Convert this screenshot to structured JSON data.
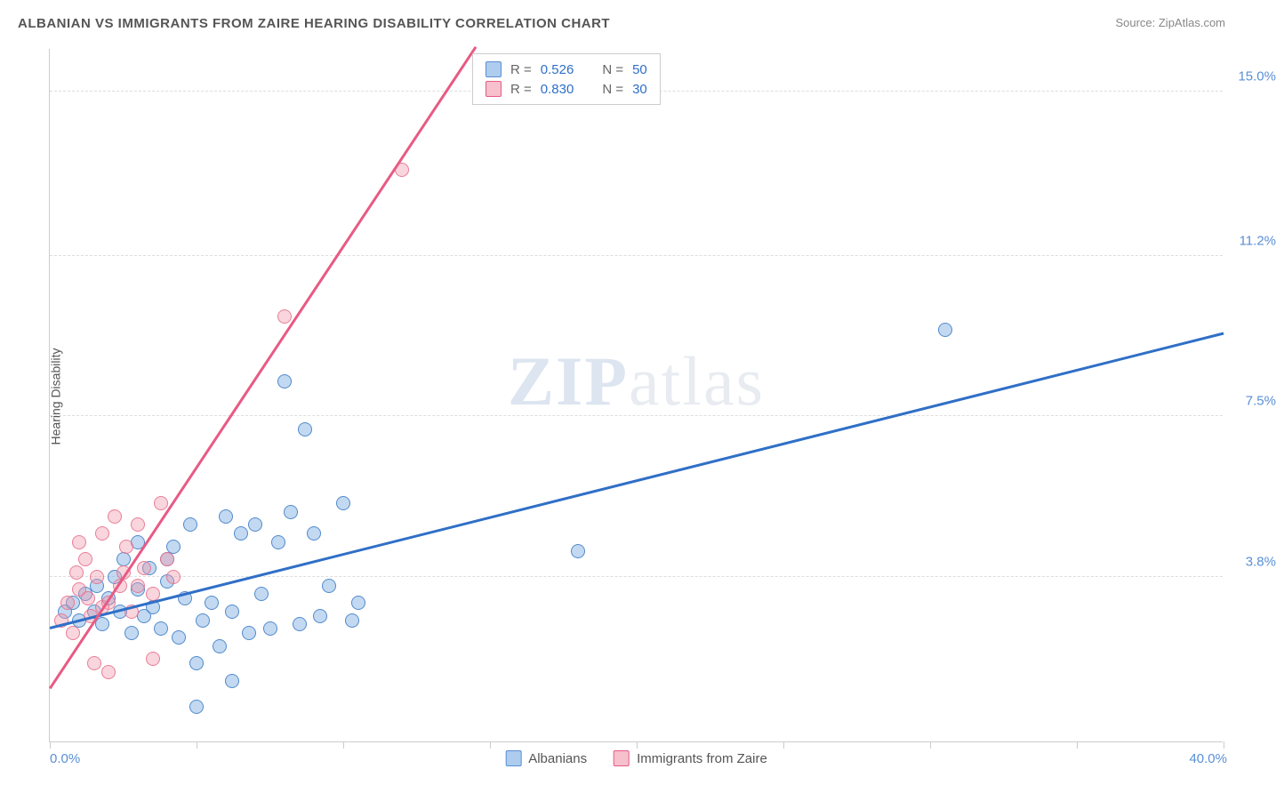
{
  "title": "ALBANIAN VS IMMIGRANTS FROM ZAIRE HEARING DISABILITY CORRELATION CHART",
  "source": "Source: ZipAtlas.com",
  "y_axis_label": "Hearing Disability",
  "watermark_bold": "ZIP",
  "watermark_rest": "atlas",
  "chart": {
    "type": "scatter",
    "xlim": [
      0,
      40
    ],
    "ylim": [
      0,
      16
    ],
    "x_min_label": "0.0%",
    "x_max_label": "40.0%",
    "y_ticks": [
      3.8,
      7.5,
      11.2,
      15.0
    ],
    "y_tick_labels": [
      "3.8%",
      "7.5%",
      "11.2%",
      "15.0%"
    ],
    "x_ticks": [
      0,
      5,
      10,
      15,
      20,
      25,
      30,
      35,
      40
    ],
    "background_color": "#ffffff",
    "grid_color": "#dddddd",
    "axis_color": "#cccccc",
    "label_color": "#5a8fd6",
    "point_radius": 8,
    "series": [
      {
        "name": "Albanians",
        "color_fill": "rgba(120,170,225,0.45)",
        "color_stroke": "#4682c8",
        "trend_color": "#2f6fc7",
        "R": "0.526",
        "N": "50",
        "trend": {
          "x1": 0,
          "y1": 2.6,
          "x2": 40,
          "y2": 9.4
        },
        "points": [
          [
            0.5,
            3.0
          ],
          [
            0.8,
            3.2
          ],
          [
            1.0,
            2.8
          ],
          [
            1.2,
            3.4
          ],
          [
            1.5,
            3.0
          ],
          [
            1.6,
            3.6
          ],
          [
            1.8,
            2.7
          ],
          [
            2.0,
            3.3
          ],
          [
            2.2,
            3.8
          ],
          [
            2.4,
            3.0
          ],
          [
            2.5,
            4.2
          ],
          [
            2.8,
            2.5
          ],
          [
            3.0,
            3.5
          ],
          [
            3.2,
            2.9
          ],
          [
            3.4,
            4.0
          ],
          [
            3.5,
            3.1
          ],
          [
            3.8,
            2.6
          ],
          [
            4.0,
            3.7
          ],
          [
            4.2,
            4.5
          ],
          [
            4.4,
            2.4
          ],
          [
            4.6,
            3.3
          ],
          [
            4.8,
            5.0
          ],
          [
            5.0,
            1.8
          ],
          [
            5.2,
            2.8
          ],
          [
            5.5,
            3.2
          ],
          [
            5.8,
            2.2
          ],
          [
            6.0,
            5.2
          ],
          [
            6.2,
            3.0
          ],
          [
            6.5,
            4.8
          ],
          [
            6.8,
            2.5
          ],
          [
            7.0,
            5.0
          ],
          [
            7.2,
            3.4
          ],
          [
            7.5,
            2.6
          ],
          [
            7.8,
            4.6
          ],
          [
            8.0,
            8.3
          ],
          [
            8.2,
            5.3
          ],
          [
            8.5,
            2.7
          ],
          [
            8.7,
            7.2
          ],
          [
            9.0,
            4.8
          ],
          [
            9.2,
            2.9
          ],
          [
            9.5,
            3.6
          ],
          [
            10.0,
            5.5
          ],
          [
            10.3,
            2.8
          ],
          [
            10.5,
            3.2
          ],
          [
            5.0,
            0.8
          ],
          [
            6.2,
            1.4
          ],
          [
            18.0,
            4.4
          ],
          [
            30.5,
            9.5
          ],
          [
            4.0,
            4.2
          ],
          [
            3.0,
            4.6
          ]
        ]
      },
      {
        "name": "Immigrants from Zaire",
        "color_fill": "rgba(240,150,170,0.4)",
        "color_stroke": "#e66e8c",
        "trend_color": "#e85a84",
        "R": "0.830",
        "N": "30",
        "trend": {
          "x1": 0,
          "y1": 1.2,
          "x2": 15,
          "y2": 16.5
        },
        "points": [
          [
            0.4,
            2.8
          ],
          [
            0.6,
            3.2
          ],
          [
            0.8,
            2.5
          ],
          [
            1.0,
            3.5
          ],
          [
            1.2,
            4.2
          ],
          [
            1.4,
            2.9
          ],
          [
            1.6,
            3.8
          ],
          [
            1.8,
            4.8
          ],
          [
            2.0,
            3.2
          ],
          [
            2.2,
            5.2
          ],
          [
            2.4,
            3.6
          ],
          [
            2.6,
            4.5
          ],
          [
            2.8,
            3.0
          ],
          [
            3.0,
            5.0
          ],
          [
            3.2,
            4.0
          ],
          [
            3.5,
            3.4
          ],
          [
            3.8,
            5.5
          ],
          [
            4.0,
            4.2
          ],
          [
            4.2,
            3.8
          ],
          [
            1.5,
            1.8
          ],
          [
            2.0,
            1.6
          ],
          [
            3.5,
            1.9
          ],
          [
            1.0,
            4.6
          ],
          [
            2.5,
            3.9
          ],
          [
            3.0,
            3.6
          ],
          [
            1.8,
            3.1
          ],
          [
            8.0,
            9.8
          ],
          [
            12.0,
            13.2
          ],
          [
            0.9,
            3.9
          ],
          [
            1.3,
            3.3
          ]
        ]
      }
    ]
  },
  "legend": {
    "series1": "Albanians",
    "series2": "Immigrants from Zaire"
  },
  "stats_labels": {
    "R": "R =",
    "N": "N ="
  }
}
